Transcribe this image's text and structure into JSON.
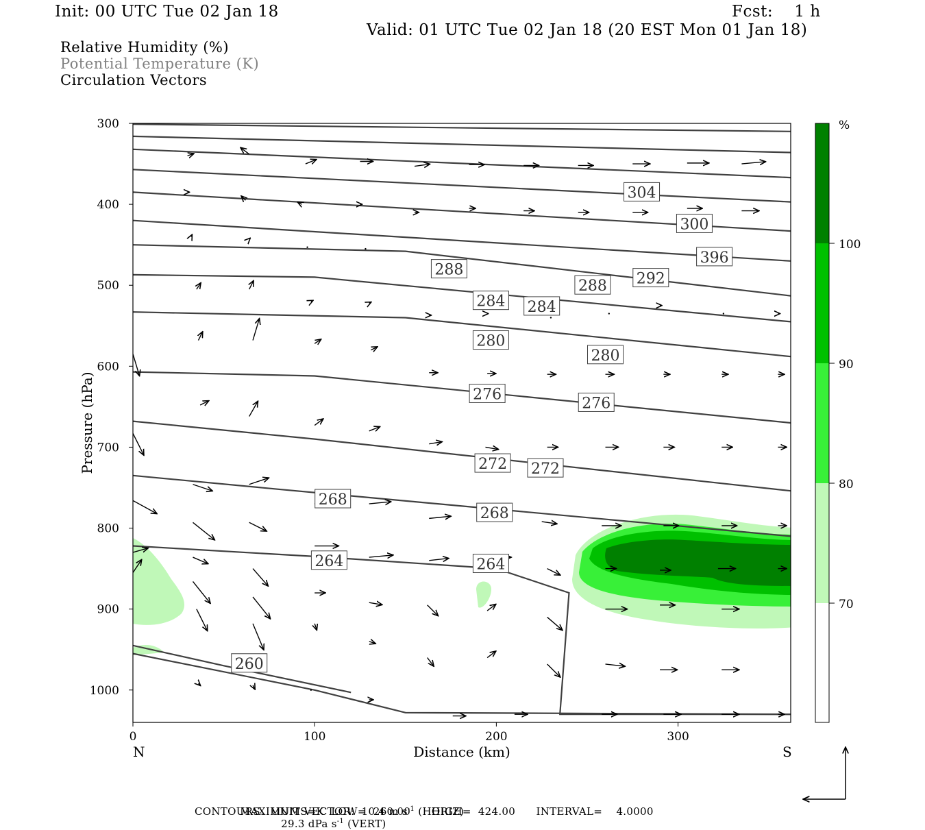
{
  "header": {
    "init": "Init: 00 UTC Tue 02 Jan 18",
    "fcst": "Fcst:    1 h",
    "valid": "Valid: 01 UTC Tue 02 Jan 18 (20 EST Mon 01 Jan 18)"
  },
  "fields": {
    "rh": "Relative Humidity (%)",
    "theta": "Potential Temperature (K)",
    "vectors": "Circulation Vectors"
  },
  "footer": {
    "max_vector_prefix": "MAXIMUM VECTOR:  10.4 m s",
    "max_vector_horiz": " (HORIZ)",
    "max_vector_vert_prefix": "29.3 dPa s",
    "max_vector_vert": " (VERT)",
    "exp": "-1",
    "contours": "CONTOURS:  UNITS=K  LOW=  260.00      HIGH=  424.00      INTERVAL=    4.0000"
  },
  "colors": {
    "rh70": "#c0f8b8",
    "rh80": "#38f038",
    "rh90": "#00c000",
    "rh100": "#008000",
    "contour": "#404040"
  },
  "chart_data": {
    "type": "cross-section",
    "xlabel": "Distance (km)",
    "ylabel": "Pressure (hPa)",
    "xlim": [
      0,
      362
    ],
    "ylim": [
      1040,
      300
    ],
    "x_ticks": [
      0,
      100,
      200,
      300
    ],
    "y_ticks": [
      300,
      400,
      500,
      600,
      700,
      800,
      900,
      1000
    ],
    "x_end_labels": {
      "left": "N",
      "right": "S"
    },
    "colorbar": {
      "unit": "%",
      "levels": [
        70,
        80,
        90,
        100
      ]
    },
    "theta_contours": [
      {
        "points": [
          [
            0,
            301
          ],
          [
            362,
            310
          ]
        ]
      },
      {
        "points": [
          [
            0,
            316
          ],
          [
            362,
            336
          ]
        ]
      },
      {
        "points": [
          [
            0,
            332
          ],
          [
            362,
            367
          ]
        ]
      },
      {
        "points": [
          [
            0,
            357
          ],
          [
            362,
            397
          ]
        ]
      },
      {
        "points": [
          [
            0,
            385
          ],
          [
            362,
            433
          ]
        ]
      },
      {
        "points": [
          [
            0,
            420
          ],
          [
            362,
            470
          ]
        ]
      },
      {
        "points": [
          [
            0,
            450
          ],
          [
            150,
            458
          ],
          [
            362,
            513
          ]
        ]
      },
      {
        "points": [
          [
            0,
            487
          ],
          [
            100,
            490
          ],
          [
            362,
            545
          ]
        ]
      },
      {
        "points": [
          [
            0,
            533
          ],
          [
            150,
            540
          ],
          [
            362,
            588
          ]
        ]
      },
      {
        "points": [
          [
            0,
            607
          ],
          [
            100,
            612
          ],
          [
            362,
            670
          ]
        ]
      },
      {
        "points": [
          [
            0,
            668
          ],
          [
            100,
            690
          ],
          [
            362,
            754
          ]
        ]
      },
      {
        "points": [
          [
            0,
            735
          ],
          [
            80,
            752
          ],
          [
            362,
            810
          ]
        ]
      },
      {
        "points": [
          [
            0,
            822
          ],
          [
            100,
            835
          ],
          [
            200,
            850
          ],
          [
            240,
            880
          ],
          [
            235,
            1030
          ],
          [
            362,
            1030
          ]
        ]
      },
      {
        "points": [
          [
            0,
            945
          ],
          [
            50,
            970
          ],
          [
            120,
            1003
          ]
        ]
      },
      {
        "points": [
          [
            0,
            955
          ],
          [
            100,
            1000
          ],
          [
            150,
            1028
          ],
          [
            362,
            1030
          ]
        ]
      }
    ],
    "contour_labels": [
      {
        "text": "304",
        "x": 280,
        "p": 385
      },
      {
        "text": "300",
        "x": 309,
        "p": 424
      },
      {
        "text": "396",
        "x": 320,
        "p": 465
      },
      {
        "text": "292",
        "x": 285,
        "p": 491
      },
      {
        "text": "288",
        "x": 174,
        "p": 480
      },
      {
        "text": "288",
        "x": 253,
        "p": 500
      },
      {
        "text": "284",
        "x": 197,
        "p": 519
      },
      {
        "text": "284",
        "x": 225,
        "p": 526
      },
      {
        "text": "280",
        "x": 197,
        "p": 568
      },
      {
        "text": "280",
        "x": 260,
        "p": 586
      },
      {
        "text": "276",
        "x": 195,
        "p": 634
      },
      {
        "text": "276",
        "x": 255,
        "p": 645
      },
      {
        "text": "272",
        "x": 198,
        "p": 720
      },
      {
        "text": "272",
        "x": 227,
        "p": 726
      },
      {
        "text": "268",
        "x": 110,
        "p": 764
      },
      {
        "text": "268",
        "x": 199,
        "p": 781
      },
      {
        "text": "264",
        "x": 108,
        "p": 840
      },
      {
        "text": "264",
        "x": 197,
        "p": 844
      },
      {
        "text": "260",
        "x": 64,
        "p": 967
      }
    ],
    "vectors": [
      [
        30,
        340,
        6,
        -2
      ],
      [
        64,
        338,
        -8,
        -6
      ],
      [
        95,
        350,
        10,
        -4
      ],
      [
        125,
        347,
        12,
        0
      ],
      [
        155,
        353,
        14,
        -2
      ],
      [
        185,
        351,
        14,
        0
      ],
      [
        215,
        352,
        14,
        0
      ],
      [
        245,
        352,
        14,
        0
      ],
      [
        275,
        350,
        16,
        0
      ],
      [
        305,
        349,
        20,
        0
      ],
      [
        335,
        350,
        22,
        -2
      ],
      [
        30,
        385,
        2,
        0
      ],
      [
        62,
        395,
        -4,
        -4
      ],
      [
        93,
        400,
        -4,
        -2
      ],
      [
        125,
        400,
        2,
        0
      ],
      [
        155,
        410,
        4,
        0
      ],
      [
        185,
        405,
        6,
        0
      ],
      [
        215,
        408,
        10,
        0
      ],
      [
        245,
        410,
        10,
        0
      ],
      [
        275,
        410,
        14,
        0
      ],
      [
        305,
        405,
        14,
        0
      ],
      [
        335,
        408,
        16,
        0
      ],
      [
        32,
        440,
        1,
        -2
      ],
      [
        64,
        443,
        1,
        -1
      ],
      [
        96,
        453,
        0,
        0
      ],
      [
        128,
        455,
        0,
        0
      ],
      [
        35,
        505,
        4,
        -6
      ],
      [
        64,
        505,
        4,
        -8
      ],
      [
        98,
        520,
        2,
        -1
      ],
      [
        130,
        522,
        2,
        -1
      ],
      [
        163,
        537,
        2,
        0
      ],
      [
        195,
        535,
        1,
        0
      ],
      [
        230,
        540,
        0,
        0
      ],
      [
        262,
        535,
        0,
        0
      ],
      [
        290,
        525,
        2,
        0
      ],
      [
        325,
        535,
        0,
        0
      ],
      [
        355,
        535,
        2,
        0
      ],
      [
        36,
        568,
        4,
        -8
      ],
      [
        66,
        568,
        6,
        -20
      ],
      [
        100,
        572,
        6,
        -4
      ],
      [
        131,
        580,
        6,
        -3
      ],
      [
        163,
        608,
        8,
        0
      ],
      [
        195,
        609,
        8,
        0
      ],
      [
        228,
        610,
        8,
        0
      ],
      [
        260,
        610,
        8,
        0
      ],
      [
        292,
        610,
        6,
        0
      ],
      [
        324,
        610,
        6,
        0
      ],
      [
        355,
        610,
        6,
        0
      ],
      [
        37,
        648,
        8,
        -4
      ],
      [
        64,
        662,
        8,
        -14
      ],
      [
        100,
        673,
        8,
        -6
      ],
      [
        130,
        680,
        10,
        -4
      ],
      [
        163,
        696,
        12,
        -2
      ],
      [
        194,
        700,
        12,
        2
      ],
      [
        228,
        700,
        10,
        0
      ],
      [
        260,
        700,
        12,
        0
      ],
      [
        292,
        700,
        10,
        0
      ],
      [
        324,
        700,
        10,
        0
      ],
      [
        355,
        700,
        8,
        0
      ],
      [
        33,
        746,
        18,
        6
      ],
      [
        64,
        746,
        18,
        -6
      ],
      [
        100,
        770,
        14,
        -2
      ],
      [
        130,
        770,
        20,
        -2
      ],
      [
        163,
        788,
        20,
        -2
      ],
      [
        195,
        788,
        20,
        -2
      ],
      [
        225,
        792,
        14,
        2
      ],
      [
        258,
        797,
        18,
        0
      ],
      [
        292,
        797,
        14,
        0
      ],
      [
        324,
        797,
        14,
        0
      ],
      [
        355,
        797,
        8,
        0
      ],
      [
        33,
        793,
        20,
        16
      ],
      [
        64,
        793,
        16,
        8
      ],
      [
        100,
        822,
        22,
        0
      ],
      [
        130,
        836,
        22,
        -2
      ],
      [
        163,
        840,
        18,
        -2
      ],
      [
        195,
        836,
        22,
        0
      ],
      [
        228,
        850,
        12,
        6
      ],
      [
        260,
        850,
        10,
        0
      ],
      [
        290,
        852,
        10,
        0
      ],
      [
        322,
        850,
        16,
        0
      ],
      [
        355,
        850,
        8,
        0
      ],
      [
        0,
        830,
        14,
        -4
      ],
      [
        33,
        836,
        14,
        6
      ],
      [
        66,
        850,
        14,
        16
      ],
      [
        100,
        880,
        10,
        0
      ],
      [
        130,
        892,
        12,
        2
      ],
      [
        162,
        895,
        10,
        10
      ],
      [
        195,
        902,
        8,
        -6
      ],
      [
        228,
        910,
        14,
        12
      ],
      [
        260,
        900,
        20,
        0
      ],
      [
        290,
        895,
        14,
        0
      ],
      [
        324,
        900,
        16,
        0
      ],
      [
        0,
        855,
        8,
        -12
      ],
      [
        33,
        866,
        16,
        20
      ],
      [
        66,
        885,
        16,
        20
      ],
      [
        100,
        918,
        2,
        6
      ],
      [
        130,
        940,
        6,
        2
      ],
      [
        162,
        960,
        6,
        8
      ],
      [
        195,
        960,
        8,
        -6
      ],
      [
        228,
        968,
        12,
        12
      ],
      [
        260,
        968,
        18,
        2
      ],
      [
        290,
        975,
        16,
        0
      ],
      [
        324,
        975,
        16,
        0
      ],
      [
        35,
        900,
        10,
        20
      ],
      [
        66,
        918,
        10,
        24
      ],
      [
        36,
        992,
        2,
        2
      ],
      [
        66,
        994,
        2,
        4
      ],
      [
        98,
        1000,
        0,
        0
      ],
      [
        130,
        1012,
        4,
        0
      ],
      [
        176,
        1032,
        12,
        0
      ],
      [
        210,
        1030,
        12,
        0
      ],
      [
        258,
        1030,
        14,
        0
      ],
      [
        292,
        1030,
        16,
        0
      ],
      [
        324,
        1030,
        16,
        0
      ],
      [
        355,
        1030,
        6,
        0
      ],
      [
        0,
        585,
        6,
        20
      ],
      [
        0,
        683,
        10,
        20
      ],
      [
        0,
        766,
        22,
        12
      ]
    ]
  }
}
